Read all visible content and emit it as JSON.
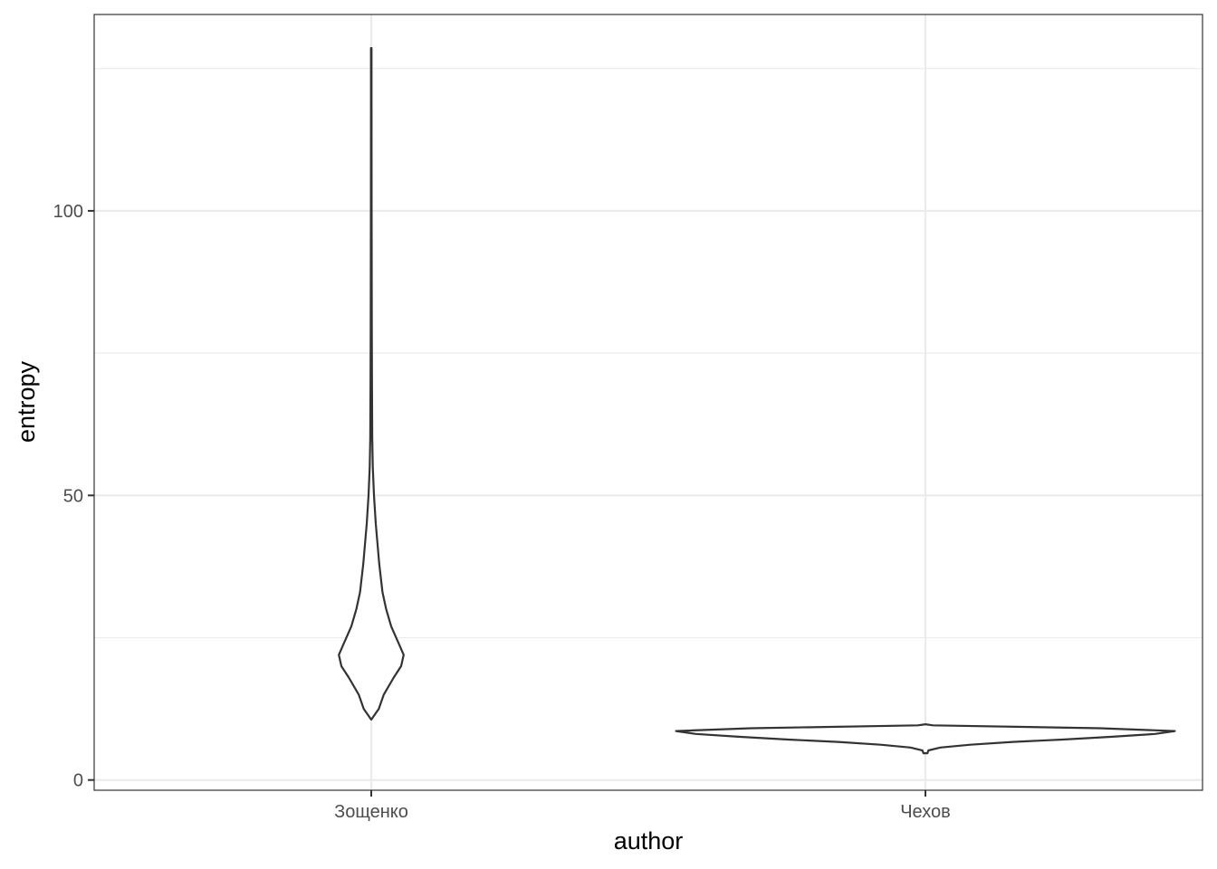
{
  "chart_data": {
    "type": "violin",
    "title": "",
    "xlabel": "author",
    "ylabel": "entropy",
    "categories": [
      "Зощенко",
      "Чехов"
    ],
    "ylim": [
      -1.8,
      134.5
    ],
    "yticks": [
      0,
      50,
      100
    ],
    "grid": true,
    "violins": [
      {
        "category": "Зощенко",
        "profile": [
          [
            10.6,
            0.0
          ],
          [
            12.5,
            0.03
          ],
          [
            15.0,
            0.05
          ],
          [
            18.0,
            0.09
          ],
          [
            20.0,
            0.12
          ],
          [
            22.0,
            0.13
          ],
          [
            24.0,
            0.11
          ],
          [
            27.0,
            0.08
          ],
          [
            30.0,
            0.06
          ],
          [
            33.0,
            0.045
          ],
          [
            38.0,
            0.032
          ],
          [
            45.0,
            0.018
          ],
          [
            50.0,
            0.011
          ],
          [
            55.0,
            0.006
          ],
          [
            60.0,
            0.004
          ],
          [
            70.0,
            0.003
          ],
          [
            80.0,
            0.002
          ],
          [
            100.0,
            0.0015
          ],
          [
            120.0,
            0.001
          ],
          [
            128.6,
            0.001
          ]
        ]
      },
      {
        "category": "Чехов",
        "profile": [
          [
            4.7,
            0.008
          ],
          [
            5.2,
            0.012
          ],
          [
            5.7,
            0.06
          ],
          [
            6.2,
            0.18
          ],
          [
            6.7,
            0.35
          ],
          [
            7.1,
            0.55
          ],
          [
            7.6,
            0.75
          ],
          [
            8.1,
            0.92
          ],
          [
            8.6,
            1.0
          ],
          [
            9.1,
            0.7
          ],
          [
            9.6,
            0.03
          ],
          [
            9.8,
            0.0
          ]
        ]
      }
    ]
  }
}
